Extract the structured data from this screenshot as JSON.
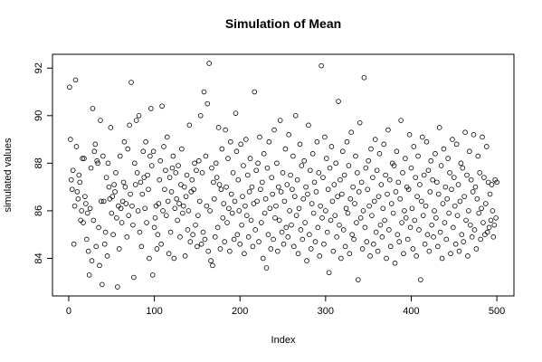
{
  "chart_data": {
    "type": "scatter",
    "title": "Simulation of Mean",
    "x_label": "Index",
    "y_label": "simulated values",
    "xlim": [
      -18.96,
      519.96
    ],
    "ylim": [
      82.42,
      92.58
    ],
    "xticks": [
      0,
      100,
      200,
      300,
      400,
      500
    ],
    "yticks": [
      84,
      86,
      88,
      90,
      92
    ],
    "color": "#000000",
    "values": [
      91.2,
      89.0,
      87.3,
      86.9,
      87.7,
      84.6,
      86.2,
      91.5,
      88.7,
      86.8,
      86.5,
      87.5,
      87.2,
      85.6,
      86.0,
      88.2,
      85.5,
      88.2,
      86.6,
      86.3,
      84.8,
      85.9,
      84.3,
      83.3,
      86.1,
      87.8,
      83.9,
      90.3,
      85.6,
      88.5,
      88.8,
      84.5,
      88.1,
      88.0,
      85.3,
      83.7,
      89.8,
      86.4,
      82.9,
      88.3,
      86.4,
      84.6,
      85.1,
      87.4,
      84.1,
      88.0,
      87.0,
      86.5,
      89.5,
      85.9,
      86.6,
      85.0,
      87.1,
      86.8,
      87.6,
      85.7,
      82.8,
      86.2,
      84.4,
      88.3,
      86.1,
      85.5,
      86.4,
      87.2,
      88.9,
      87.0,
      86.3,
      84.9,
      88.6,
      85.8,
      89.6,
      86.7,
      91.4,
      86.2,
      85.4,
      83.2,
      88.0,
      87.1,
      89.8,
      87.6,
      86.0,
      90.0,
      85.1,
      87.2,
      84.5,
      86.7,
      88.5,
      87.4,
      86.1,
      88.9,
      85.5,
      87.5,
      86.9,
      84.0,
      88.3,
      90.3,
      87.9,
      83.3,
      88.5,
      85.3,
      85.7,
      86.2,
      84.4,
      85.0,
      86.3,
      87.3,
      88.1,
      84.6,
      90.4,
      86.0,
      88.7,
      86.9,
      87.7,
      85.8,
      89.1,
      86.4,
      84.2,
      87.4,
      85.1,
      86.8,
      87.8,
      88.3,
      84.0,
      86.1,
      87.6,
      86.5,
      85.6,
      87.9,
      86.3,
      84.9,
      87.1,
      88.6,
      85.9,
      86.2,
      87.0,
      84.1,
      86.6,
      87.5,
      85.2,
      86.0,
      89.6,
      84.7,
      86.8,
      87.3,
      85.0,
      86.9,
      88.0,
      85.4,
      87.7,
      84.5,
      85.8,
      88.1,
      86.4,
      90.0,
      84.6,
      87.6,
      85.1,
      91.0,
      84.8,
      88.3,
      86.2,
      90.5,
      84.3,
      92.2,
      86.0,
      83.9,
      87.8,
      83.7,
      87.2,
      86.5,
      84.9,
      88.0,
      87.4,
      85.3,
      89.5,
      87.1,
      84.4,
      86.9,
      88.6,
      85.7,
      86.3,
      84.7,
      89.4,
      87.0,
      85.5,
      88.2,
      86.1,
      84.3,
      88.9,
      86.7,
      85.9,
      87.6,
      84.8,
      86.4,
      90.1,
      88.5,
      85.0,
      87.3,
      86.0,
      84.6,
      88.8,
      85.4,
      86.6,
      87.9,
      84.2,
      86.2,
      89.0,
      85.8,
      87.5,
      84.9,
      86.8,
      88.2,
      85.6,
      87.0,
      84.5,
      86.3,
      91.0,
      85.2,
      87.7,
      86.4,
      88.0,
      84.7,
      89.1,
      86.9,
      85.5,
      87.2,
      84.0,
      88.4,
      85.9,
      86.5,
      83.6,
      87.8,
      85.0,
      88.9,
      86.1,
      84.4,
      87.4,
      86.7,
      84.8,
      89.4,
      85.7,
      86.2,
      88.0,
      84.3,
      87.0,
      85.6,
      89.8,
      86.8,
      85.1,
      87.6,
      84.6,
      86.4,
      88.6,
      85.3,
      87.1,
      84.9,
      89.2,
      86.0,
      87.5,
      85.4,
      86.9,
      88.3,
      84.5,
      86.6,
      90.0,
      85.8,
      87.3,
      84.2,
      86.1,
      88.8,
      85.2,
      87.9,
      84.8,
      86.5,
      88.1,
      85.5,
      87.0,
      83.9,
      86.7,
      89.6,
      85.0,
      87.7,
      84.4,
      86.3,
      88.4,
      85.9,
      87.2,
      84.7,
      86.8,
      88.9,
      85.3,
      87.6,
      84.1,
      86.2,
      92.1,
      85.7,
      87.4,
      84.6,
      89.1,
      86.0,
      88.2,
      85.1,
      86.9,
      83.4,
      87.8,
      85.6,
      88.7,
      86.4,
      84.3,
      87.1,
      85.8,
      88.0,
      84.9,
      86.6,
      90.6,
      85.4,
      87.3,
      84.0,
      86.7,
      88.5,
      85.2,
      87.5,
      84.5,
      86.1,
      88.9,
      85.9,
      87.9,
      84.2,
      86.5,
      89.3,
      85.0,
      87.0,
      84.8,
      86.3,
      88.3,
      85.5,
      87.6,
      83.1,
      86.8,
      89.7,
      85.7,
      87.2,
      84.4,
      86.0,
      91.6,
      85.3,
      87.8,
      84.7,
      86.9,
      88.1,
      86.2,
      84.1,
      88.6,
      85.8,
      87.4,
      84.6,
      86.4,
      89.0,
      85.1,
      87.7,
      84.3,
      86.6,
      88.4,
      85.4,
      87.1,
      84.9,
      86.1,
      88.8,
      85.6,
      87.5,
      84.0,
      86.7,
      89.4,
      85.2,
      87.3,
      84.5,
      86.3,
      88.0,
      85.9,
      87.9,
      83.8,
      86.8,
      88.5,
      85.0,
      87.2,
      84.7,
      86.5,
      89.8,
      85.5,
      87.6,
      84.2,
      86.0,
      88.2,
      85.7,
      87.0,
      84.8,
      86.9,
      89.2,
      85.3,
      87.8,
      86.1,
      84.4,
      88.7,
      85.6,
      87.4,
      84.1,
      86.6,
      88.3,
      85.2,
      87.1,
      83.1,
      86.4,
      89.1,
      85.8,
      87.5,
      84.6,
      86.2,
      88.9,
      85.0,
      87.7,
      84.3,
      86.8,
      88.1,
      85.4,
      87.3,
      84.9,
      86.0,
      88.4,
      85.7,
      87.2,
      84.5,
      86.7,
      89.5,
      85.1,
      87.9,
      84.0,
      86.3,
      88.6,
      85.5,
      87.0,
      84.8,
      86.5,
      88.2,
      85.9,
      87.6,
      84.2,
      86.9,
      89.0,
      85.3,
      87.4,
      86.2,
      84.6,
      88.8,
      85.8,
      87.1,
      84.3,
      86.4,
      88.0,
      85.0,
      87.8,
      84.7,
      86.6,
      89.3,
      85.6,
      87.5,
      84.1,
      86.0,
      88.5,
      85.4,
      87.3,
      84.9,
      86.8,
      89.2,
      85.2,
      87.0,
      84.4,
      86.5,
      88.3,
      85.9,
      87.6,
      84.8,
      86.1,
      89.1,
      85.5,
      87.4,
      85.0,
      86.3,
      88.7,
      85.1,
      87.2,
      85.3,
      86.7,
      85.6,
      87.1,
      86.0,
      84.9,
      85.4,
      87.3,
      85.7,
      87.2
    ]
  }
}
